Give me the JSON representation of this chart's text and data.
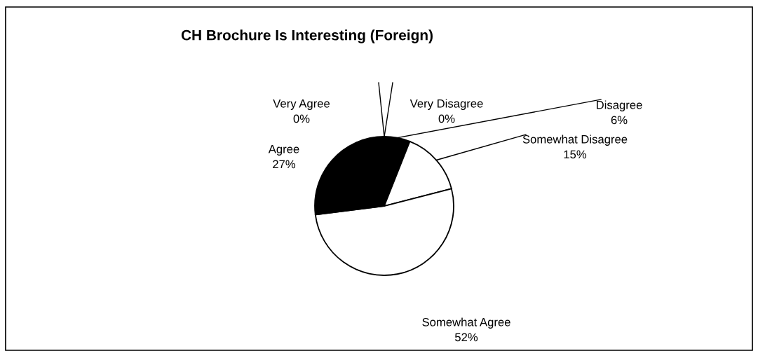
{
  "chart_data": {
    "type": "pie",
    "title": "CH Brochure Is Interesting (Foreign)",
    "categories": [
      "Very Disagree",
      "Disagree",
      "Somewhat Disagree",
      "Somewhat Agree",
      "Agree",
      "Very Agree"
    ],
    "values": [
      0,
      6,
      15,
      52,
      27,
      0
    ],
    "value_labels": [
      "0%",
      "6%",
      "15%",
      "52%",
      "27%",
      "0%"
    ],
    "colors": [
      "#ffffff",
      "#000000",
      "#ffffff",
      "#ffffff",
      "#000000",
      "#ffffff"
    ],
    "legend": false
  }
}
